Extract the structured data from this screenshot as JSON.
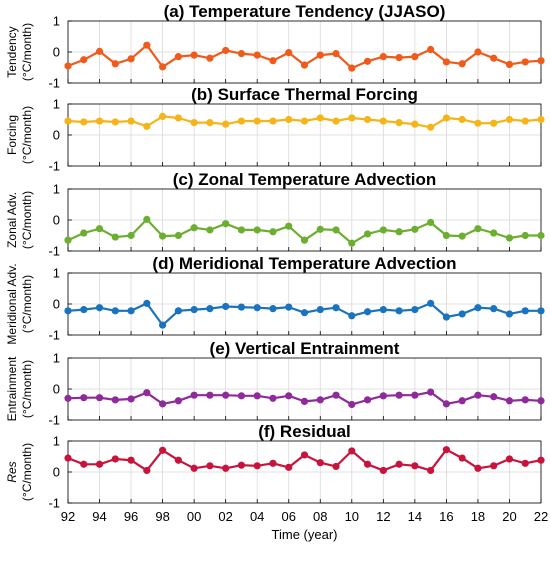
{
  "chart_data": [
    {
      "type": "line",
      "title": "(a) Temperature Tendency (JJASO)",
      "ylabel_main": "Tendency",
      "ylabel_unit": "(°C/month)",
      "ylim": [
        -1,
        1
      ],
      "yticks": [
        -1,
        0,
        1
      ],
      "color": "#f05a1a",
      "x": [
        1992,
        1993,
        1994,
        1995,
        1996,
        1997,
        1998,
        1999,
        2000,
        2001,
        2002,
        2003,
        2004,
        2005,
        2006,
        2007,
        2008,
        2009,
        2010,
        2011,
        2012,
        2013,
        2014,
        2015,
        2016,
        2017,
        2018,
        2019,
        2020,
        2021,
        2022
      ],
      "values": [
        -0.45,
        -0.25,
        0.02,
        -0.38,
        -0.22,
        0.22,
        -0.48,
        -0.15,
        -0.1,
        -0.2,
        0.05,
        -0.05,
        -0.1,
        -0.28,
        -0.02,
        -0.42,
        -0.1,
        -0.05,
        -0.52,
        -0.3,
        -0.15,
        -0.18,
        -0.15,
        0.08,
        -0.32,
        -0.38,
        0.0,
        -0.2,
        -0.4,
        -0.32,
        -0.28
      ]
    },
    {
      "type": "line",
      "title": "(b) Surface Thermal Forcing",
      "ylabel_main": "Forcing",
      "ylabel_unit": "(°C/month)",
      "ylim": [
        -1,
        1
      ],
      "yticks": [
        -1,
        0,
        1
      ],
      "color": "#f5b418",
      "x": [
        1992,
        1993,
        1994,
        1995,
        1996,
        1997,
        1998,
        1999,
        2000,
        2001,
        2002,
        2003,
        2004,
        2005,
        2006,
        2007,
        2008,
        2009,
        2010,
        2011,
        2012,
        2013,
        2014,
        2015,
        2016,
        2017,
        2018,
        2019,
        2020,
        2021,
        2022
      ],
      "values": [
        0.45,
        0.42,
        0.45,
        0.42,
        0.45,
        0.28,
        0.6,
        0.55,
        0.4,
        0.4,
        0.35,
        0.45,
        0.45,
        0.45,
        0.5,
        0.45,
        0.55,
        0.45,
        0.55,
        0.5,
        0.45,
        0.4,
        0.35,
        0.25,
        0.55,
        0.5,
        0.38,
        0.38,
        0.5,
        0.45,
        0.5
      ]
    },
    {
      "type": "line",
      "title": "(c) Zonal Temperature Advection",
      "ylabel_main": "Zonal Adv.",
      "ylabel_unit": "(°C/month)",
      "ylim": [
        -1,
        1
      ],
      "yticks": [
        -1,
        0,
        1
      ],
      "color": "#6cae2f",
      "x": [
        1992,
        1993,
        1994,
        1995,
        1996,
        1997,
        1998,
        1999,
        2000,
        2001,
        2002,
        2003,
        2004,
        2005,
        2006,
        2007,
        2008,
        2009,
        2010,
        2011,
        2012,
        2013,
        2014,
        2015,
        2016,
        2017,
        2018,
        2019,
        2020,
        2021,
        2022
      ],
      "values": [
        -0.65,
        -0.42,
        -0.28,
        -0.55,
        -0.5,
        0.02,
        -0.52,
        -0.5,
        -0.25,
        -0.32,
        -0.12,
        -0.32,
        -0.32,
        -0.38,
        -0.2,
        -0.65,
        -0.3,
        -0.32,
        -0.75,
        -0.45,
        -0.32,
        -0.38,
        -0.3,
        -0.08,
        -0.5,
        -0.52,
        -0.28,
        -0.42,
        -0.58,
        -0.5,
        -0.5
      ]
    },
    {
      "type": "line",
      "title": "(d) Meridional Temperature Advection",
      "ylabel_main": "Meridional Adv.",
      "ylabel_unit": "(°C/month)",
      "ylim": [
        -1,
        1
      ],
      "yticks": [
        -1,
        0,
        1
      ],
      "color": "#1a73be",
      "x": [
        1992,
        1993,
        1994,
        1995,
        1996,
        1997,
        1998,
        1999,
        2000,
        2001,
        2002,
        2003,
        2004,
        2005,
        2006,
        2007,
        2008,
        2009,
        2010,
        2011,
        2012,
        2013,
        2014,
        2015,
        2016,
        2017,
        2018,
        2019,
        2020,
        2021,
        2022
      ],
      "values": [
        -0.22,
        -0.18,
        -0.12,
        -0.22,
        -0.22,
        0.02,
        -0.68,
        -0.22,
        -0.18,
        -0.15,
        -0.08,
        -0.1,
        -0.12,
        -0.15,
        -0.1,
        -0.28,
        -0.18,
        -0.12,
        -0.38,
        -0.25,
        -0.18,
        -0.22,
        -0.18,
        0.02,
        -0.42,
        -0.32,
        -0.12,
        -0.15,
        -0.32,
        -0.22,
        -0.22
      ]
    },
    {
      "type": "line",
      "title": "(e) Vertical Entrainment",
      "ylabel_main": "Entrainment",
      "ylabel_unit": "(°C/month)",
      "ylim": [
        -1,
        1
      ],
      "yticks": [
        -1,
        0,
        1
      ],
      "color": "#8e2a9a",
      "x": [
        1992,
        1993,
        1994,
        1995,
        1996,
        1997,
        1998,
        1999,
        2000,
        2001,
        2002,
        2003,
        2004,
        2005,
        2006,
        2007,
        2008,
        2009,
        2010,
        2011,
        2012,
        2013,
        2014,
        2015,
        2016,
        2017,
        2018,
        2019,
        2020,
        2021,
        2022
      ],
      "values": [
        -0.3,
        -0.28,
        -0.28,
        -0.35,
        -0.32,
        -0.12,
        -0.48,
        -0.38,
        -0.2,
        -0.2,
        -0.2,
        -0.22,
        -0.22,
        -0.3,
        -0.22,
        -0.4,
        -0.35,
        -0.2,
        -0.5,
        -0.35,
        -0.22,
        -0.2,
        -0.2,
        -0.1,
        -0.48,
        -0.38,
        -0.2,
        -0.25,
        -0.38,
        -0.35,
        -0.38
      ]
    },
    {
      "type": "line",
      "title": "(f) Residual",
      "ylabel_main": "Res",
      "ylabel_unit": "(°C/month)",
      "ylim": [
        -1,
        1
      ],
      "yticks": [
        -1,
        0,
        1
      ],
      "color": "#c8143c",
      "x": [
        1992,
        1993,
        1994,
        1995,
        1996,
        1997,
        1998,
        1999,
        2000,
        2001,
        2002,
        2003,
        2004,
        2005,
        2006,
        2007,
        2008,
        2009,
        2010,
        2011,
        2012,
        2013,
        2014,
        2015,
        2016,
        2017,
        2018,
        2019,
        2020,
        2021,
        2022
      ],
      "values": [
        0.45,
        0.25,
        0.25,
        0.42,
        0.38,
        0.05,
        0.7,
        0.38,
        0.12,
        0.2,
        0.12,
        0.22,
        0.2,
        0.28,
        0.15,
        0.55,
        0.3,
        0.18,
        0.68,
        0.25,
        0.05,
        0.25,
        0.2,
        0.05,
        0.72,
        0.45,
        0.12,
        0.2,
        0.42,
        0.28,
        0.38
      ]
    }
  ],
  "xaxis": {
    "xlim": [
      1992,
      2022
    ],
    "tick_values": [
      1992,
      1994,
      1996,
      1998,
      2000,
      2002,
      2004,
      2006,
      2008,
      2010,
      2012,
      2014,
      2016,
      2018,
      2020,
      2022
    ],
    "tick_labels": [
      "92",
      "94",
      "96",
      "98",
      "00",
      "02",
      "04",
      "06",
      "08",
      "10",
      "12",
      "14",
      "16",
      "18",
      "20",
      "22"
    ],
    "label": "Time (year)"
  },
  "grid": true
}
